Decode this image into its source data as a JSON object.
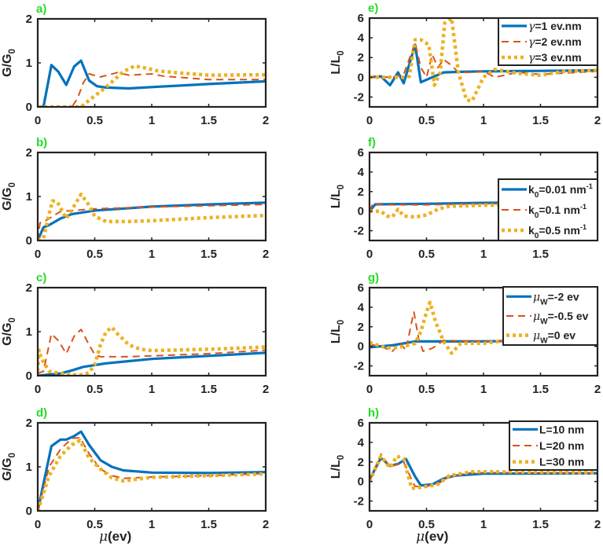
{
  "colors": {
    "series1": "#0072BD",
    "series2": "#D95319",
    "series3": "#EDB120",
    "panel_label": "#22dd22"
  },
  "chart_data": [
    {
      "panel": "a)",
      "type": "line",
      "ylabel": "G/G0",
      "xlabel": "",
      "xlim": [
        0,
        2
      ],
      "ylim": [
        0,
        2
      ],
      "xticks": [
        "0",
        "0.5",
        "1",
        "1.5",
        "2"
      ],
      "yticks": [
        "0",
        "1",
        "2"
      ],
      "legend": null,
      "series": [
        {
          "x": [
            0,
            0.05,
            0.12,
            0.18,
            0.25,
            0.32,
            0.38,
            0.45,
            0.52,
            0.6,
            0.8,
            1,
            1.5,
            2
          ],
          "y": [
            0,
            0,
            0.95,
            0.8,
            0.5,
            0.92,
            1.05,
            0.6,
            0.47,
            0.44,
            0.42,
            0.45,
            0.52,
            0.58
          ]
        },
        {
          "x": [
            0,
            0.3,
            0.35,
            0.4,
            0.45,
            0.55,
            0.7,
            0.8,
            1,
            1.1,
            1.5,
            2
          ],
          "y": [
            0,
            0,
            0.2,
            0.55,
            0.75,
            0.68,
            0.78,
            0.72,
            0.75,
            0.7,
            0.62,
            0.62
          ]
        },
        {
          "x": [
            0,
            0.38,
            0.45,
            0.6,
            0.75,
            0.85,
            0.95,
            1.05,
            1.2,
            1.5,
            2
          ],
          "y": [
            0,
            0,
            0.15,
            0.45,
            0.8,
            0.93,
            0.88,
            0.82,
            0.78,
            0.72,
            0.73
          ]
        }
      ]
    },
    {
      "panel": "b)",
      "type": "line",
      "ylabel": "G/G0",
      "xlabel": "",
      "xlim": [
        0,
        2
      ],
      "ylim": [
        0,
        2
      ],
      "xticks": [
        "0",
        "0.5",
        "1",
        "1.5",
        "2"
      ],
      "yticks": [
        "0",
        "1",
        "2"
      ],
      "legend": null,
      "series": [
        {
          "x": [
            0,
            0.05,
            0.1,
            0.2,
            0.3,
            0.5,
            1,
            1.5,
            2
          ],
          "y": [
            0,
            0.3,
            0.35,
            0.5,
            0.6,
            0.68,
            0.77,
            0.82,
            0.86
          ]
        },
        {
          "x": [
            0,
            0.02,
            0.05,
            0.1,
            0.2,
            0.3,
            0.5,
            1,
            2
          ],
          "y": [
            0,
            0.4,
            0.42,
            0.5,
            0.66,
            0.68,
            0.72,
            0.76,
            0.82
          ]
        },
        {
          "x": [
            0,
            0.05,
            0.1,
            0.13,
            0.17,
            0.25,
            0.3,
            0.38,
            0.45,
            0.5,
            0.6,
            0.8,
            1,
            1.5,
            2
          ],
          "y": [
            0,
            0.05,
            0.6,
            0.9,
            0.88,
            0.5,
            0.7,
            1.05,
            0.8,
            0.55,
            0.43,
            0.43,
            0.45,
            0.52,
            0.57
          ]
        }
      ]
    },
    {
      "panel": "c)",
      "type": "line",
      "ylabel": "G/G0",
      "xlabel": "",
      "xlim": [
        0,
        2
      ],
      "ylim": [
        0,
        2
      ],
      "xticks": [
        "0",
        "0.5",
        "1",
        "1.5",
        "2"
      ],
      "yticks": [
        "0",
        "1",
        "2"
      ],
      "legend": null,
      "series": [
        {
          "x": [
            0,
            0.2,
            0.3,
            0.4,
            0.6,
            0.8,
            1,
            1.5,
            2
          ],
          "y": [
            0,
            0.05,
            0.12,
            0.2,
            0.28,
            0.33,
            0.38,
            0.45,
            0.52
          ]
        },
        {
          "x": [
            0,
            0.05,
            0.12,
            0.18,
            0.25,
            0.32,
            0.38,
            0.45,
            0.5,
            0.55,
            0.8,
            1,
            1.5,
            2
          ],
          "y": [
            0.05,
            0.1,
            0.95,
            0.8,
            0.5,
            0.9,
            1.05,
            0.7,
            0.48,
            0.43,
            0.43,
            0.45,
            0.5,
            0.58
          ]
        },
        {
          "x": [
            0,
            0.01,
            0.03,
            0.1,
            0.2,
            0.3,
            0.4,
            0.45,
            0.5,
            0.55,
            0.6,
            0.65,
            0.7,
            0.8,
            0.9,
            1,
            1.5,
            2
          ],
          "y": [
            0.1,
            0.58,
            0.4,
            0.1,
            0.05,
            0.02,
            0.02,
            0.07,
            0.25,
            0.7,
            1.0,
            1.1,
            0.95,
            0.7,
            0.6,
            0.57,
            0.6,
            0.65
          ]
        }
      ]
    },
    {
      "panel": "d)",
      "type": "line",
      "ylabel": "G/G0",
      "xlabel": "μ(ev)",
      "xlim": [
        0,
        2
      ],
      "ylim": [
        0,
        2
      ],
      "xticks": [
        "0",
        "0.5",
        "1",
        "1.5",
        "2"
      ],
      "yticks": [
        "0",
        "1",
        "2"
      ],
      "legend": null,
      "series": [
        {
          "x": [
            0,
            0.12,
            0.2,
            0.25,
            0.32,
            0.38,
            0.45,
            0.55,
            0.65,
            0.75,
            1,
            1.5,
            2
          ],
          "y": [
            0,
            1.47,
            1.62,
            1.62,
            1.7,
            1.8,
            1.5,
            1.15,
            1.0,
            0.92,
            0.87,
            0.86,
            0.88
          ]
        },
        {
          "x": [
            0,
            0.1,
            0.2,
            0.3,
            0.37,
            0.45,
            0.55,
            0.65,
            0.75,
            1,
            1.5,
            2
          ],
          "y": [
            0,
            1.0,
            1.4,
            1.65,
            1.66,
            1.3,
            0.95,
            0.8,
            0.74,
            0.77,
            0.8,
            0.85
          ]
        },
        {
          "x": [
            0,
            0.1,
            0.2,
            0.3,
            0.37,
            0.45,
            0.55,
            0.65,
            0.75,
            1,
            1.5,
            2
          ],
          "y": [
            0,
            0.8,
            1.25,
            1.5,
            1.6,
            1.2,
            0.95,
            0.75,
            0.68,
            0.76,
            0.8,
            0.84
          ]
        }
      ]
    },
    {
      "panel": "e)",
      "type": "line",
      "ylabel": "L/L0",
      "xlabel": "",
      "xlim": [
        0,
        2
      ],
      "ylim": [
        -3,
        6
      ],
      "xticks": [
        "0",
        "0.5",
        "1",
        "1.5",
        "2"
      ],
      "yticks": [
        "-2",
        "0",
        "2",
        "4",
        "6"
      ],
      "legend": {
        "placement": "top-right",
        "entries": [
          "γ=1 ev.nm",
          "γ=2 ev.nm",
          "γ=3 ev.nm"
        ]
      },
      "series": [
        {
          "x": [
            0,
            0.1,
            0.18,
            0.25,
            0.3,
            0.4,
            0.45,
            0.55,
            0.65,
            0.8,
            1,
            1.5,
            2
          ],
          "y": [
            0,
            0.1,
            -0.8,
            0.5,
            -0.6,
            3.3,
            -0.5,
            0,
            0.5,
            0.55,
            0.6,
            0.65,
            0.7
          ]
        },
        {
          "x": [
            0,
            0.2,
            0.3,
            0.4,
            0.45,
            0.5,
            0.55,
            0.6,
            0.65,
            0.72,
            0.78,
            0.9,
            1,
            1.1,
            1.3,
            1.5,
            2
          ],
          "y": [
            0,
            0,
            0.3,
            3.5,
            1,
            0,
            2.3,
            1,
            1.8,
            1.2,
            0.5,
            0.5,
            0.6,
            0,
            0.5,
            0.3,
            0.6
          ]
        },
        {
          "x": [
            0,
            0.3,
            0.35,
            0.4,
            0.45,
            0.52,
            0.57,
            0.62,
            0.66,
            0.72,
            0.78,
            0.85,
            0.9,
            1,
            1.1,
            1.3,
            1.5,
            1.7,
            2
          ],
          "y": [
            0,
            0,
            0.1,
            3.8,
            3.8,
            3.3,
            -0.8,
            0.5,
            5.5,
            6,
            0.5,
            -2.3,
            -2.4,
            0,
            0.8,
            0.4,
            0.2,
            0.6,
            0.7
          ]
        }
      ]
    },
    {
      "panel": "f)",
      "type": "line",
      "ylabel": "L/L0",
      "xlabel": "",
      "xlim": [
        0,
        2
      ],
      "ylim": [
        -3,
        6
      ],
      "xticks": [
        "0",
        "0.5",
        "1",
        "1.5"
      ],
      "yticks": [
        "-2",
        "0",
        "2",
        "4",
        "6"
      ],
      "legend": {
        "placement": "bottom-right",
        "entries": [
          "k0=0.01 nm-1",
          "k0=0.1 nm-1",
          "k0=0.5 nm-1"
        ]
      },
      "series": [
        {
          "x": [
            0,
            0.05,
            0.5,
            1,
            1.5,
            2
          ],
          "y": [
            0,
            0.7,
            0.75,
            0.85,
            0.9,
            0.95
          ]
        },
        {
          "x": [
            0,
            0.03,
            0.1,
            0.5,
            1,
            2
          ],
          "y": [
            0,
            0.8,
            0.65,
            0.65,
            0.75,
            0.8
          ]
        },
        {
          "x": [
            0,
            0.1,
            0.15,
            0.2,
            0.25,
            0.3,
            0.4,
            0.5,
            0.6,
            0.7,
            1,
            2
          ],
          "y": [
            0,
            0,
            -0.5,
            -0.6,
            0.2,
            -0.5,
            -0.6,
            -0.4,
            0.2,
            0.5,
            0.6,
            0.7
          ]
        }
      ]
    },
    {
      "panel": "g)",
      "type": "line",
      "ylabel": "L/L0",
      "xlabel": "",
      "xlim": [
        0,
        2
      ],
      "ylim": [
        -3,
        6
      ],
      "xticks": [
        "0",
        "0.5",
        "1",
        "1.5",
        "2"
      ],
      "yticks": [
        "-2",
        "0",
        "2",
        "4",
        "6"
      ],
      "legend": {
        "placement": "top-right",
        "entries": [
          "μW=-2 ev",
          "μW=-0.5 ev",
          "μW=0 ev"
        ]
      },
      "series": [
        {
          "x": [
            0,
            0.2,
            0.4,
            0.6,
            1,
            1.5,
            2
          ],
          "y": [
            -0.1,
            0.1,
            0.5,
            0.5,
            0.5,
            0.6,
            0.65
          ]
        },
        {
          "x": [
            0,
            0.1,
            0.2,
            0.27,
            0.32,
            0.37,
            0.39,
            0.43,
            0.47,
            0.55,
            0.65,
            1,
            1.5,
            2
          ],
          "y": [
            0.2,
            0,
            -0.5,
            0.3,
            -0.4,
            2.5,
            3.5,
            0.8,
            -0.5,
            -0.2,
            0.6,
            0.5,
            0.6,
            0.65
          ]
        },
        {
          "x": [
            0,
            0.05,
            0.1,
            0.2,
            0.3,
            0.4,
            0.45,
            0.5,
            0.53,
            0.58,
            0.65,
            0.72,
            0.8,
            1,
            1.2,
            1.5,
            2
          ],
          "y": [
            0.4,
            0.2,
            0,
            -0.2,
            0,
            0.3,
            1.5,
            3.5,
            4.5,
            2.5,
            0.5,
            -0.7,
            0.3,
            0.3,
            0.6,
            0.5,
            0.6
          ]
        }
      ]
    },
    {
      "panel": "h)",
      "type": "line",
      "ylabel": "L/L0",
      "xlabel": "μ(ev)",
      "xlim": [
        0,
        2
      ],
      "ylim": [
        -3,
        6
      ],
      "xticks": [
        "0",
        "0.5",
        "1",
        "1.5",
        "2"
      ],
      "yticks": [
        "-2",
        "0",
        "2",
        "4",
        "6"
      ],
      "legend": {
        "placement": "top-right",
        "entries": [
          "L=10 nm",
          "L=20 nm",
          "L=30 nm"
        ]
      },
      "series": [
        {
          "x": [
            0,
            0.1,
            0.18,
            0.25,
            0.32,
            0.4,
            0.45,
            0.55,
            0.65,
            0.75,
            1,
            2
          ],
          "y": [
            0.2,
            2.4,
            1.6,
            1.8,
            2.3,
            0.5,
            -0.4,
            -0.3,
            0.3,
            0.6,
            0.8,
            0.85
          ]
        },
        {
          "x": [
            0,
            0.1,
            0.18,
            0.3,
            0.37,
            0.4,
            0.5,
            0.62,
            0.7,
            0.85,
            1,
            2
          ],
          "y": [
            0.1,
            2.8,
            1.5,
            2.0,
            0.2,
            -0.5,
            -0.5,
            -0.1,
            0.5,
            0.85,
            0.9,
            0.9
          ]
        },
        {
          "x": [
            0,
            0.1,
            0.18,
            0.24,
            0.3,
            0.37,
            0.45,
            0.6,
            0.7,
            0.9,
            1,
            2
          ],
          "y": [
            0,
            2.6,
            1.4,
            2.6,
            2.3,
            -0.7,
            -0.6,
            -0.3,
            0.6,
            1.0,
            1.0,
            0.9
          ]
        }
      ]
    }
  ]
}
